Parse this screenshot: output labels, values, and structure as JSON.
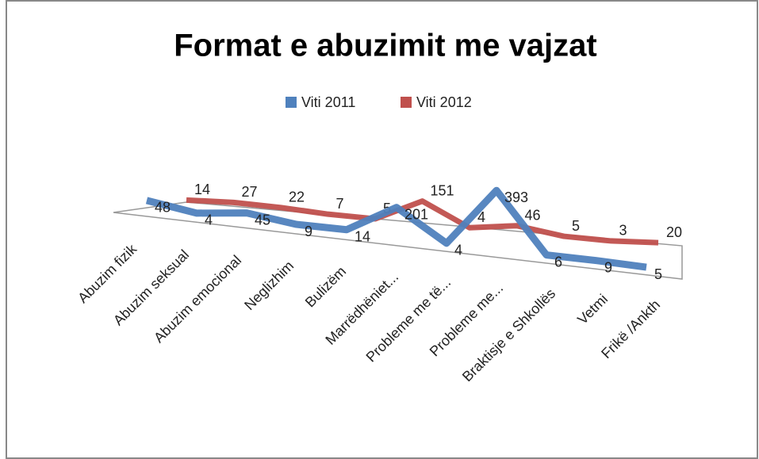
{
  "chart_data": {
    "type": "line",
    "title": "Format e abuzimit me vajzat",
    "categories": [
      "Abuzim fizik",
      "Abuzim seksual",
      "Abuzim emocional",
      "Neglizhim",
      "Bulizëm",
      "Marrëdhëniet...",
      "Probleme me të...",
      "Probleme me...",
      "Braktisje e Shkollës",
      "Vetmi",
      "Frikë /Ankth"
    ],
    "series": [
      {
        "name": "Viti 2011",
        "color": "#4f81bd",
        "values": [
          48,
          4,
          45,
          9,
          14,
          201,
          4,
          393,
          6,
          9,
          5
        ]
      },
      {
        "name": "Viti 2012",
        "color": "#c0504d",
        "values": [
          14,
          27,
          22,
          7,
          5,
          151,
          4,
          46,
          5,
          3,
          20
        ]
      }
    ],
    "legend": "top"
  }
}
